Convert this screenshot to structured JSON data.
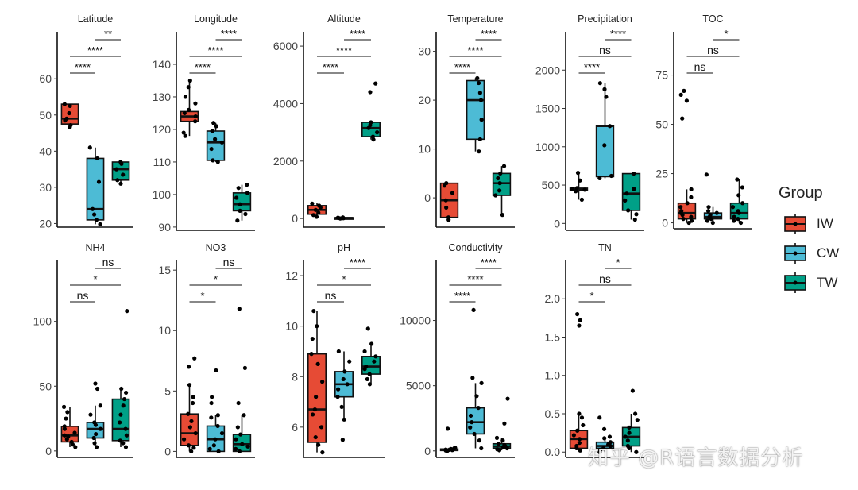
{
  "colors": {
    "IW": "#e64b35",
    "CW": "#4dbbd5",
    "TW": "#00a087"
  },
  "legend": {
    "title": "Group",
    "items": [
      "IW",
      "CW",
      "TW"
    ]
  },
  "watermark": "知乎 @R语言数据分析",
  "chart_data": [
    {
      "type": "box",
      "title": "Latitude",
      "categories": [
        "IW",
        "CW",
        "TW"
      ],
      "ylim": [
        19,
        73
      ],
      "yticks": [
        20,
        30,
        40,
        50,
        60
      ],
      "boxes": [
        {
          "group": "IW",
          "min": 46.5,
          "q1": 47.5,
          "median": 49.0,
          "q3": 53.0,
          "max": 53.0,
          "points": [
            46.6,
            47.2,
            48.5,
            49.0,
            50.5,
            52.5,
            53.0
          ]
        },
        {
          "group": "CW",
          "min": 19.8,
          "q1": 21.0,
          "median": 24.0,
          "q3": 38.0,
          "max": 41.0,
          "points": [
            19.8,
            21.0,
            22.5,
            24.0,
            31.5,
            38.0,
            41.0
          ]
        },
        {
          "group": "TW",
          "min": 31.0,
          "q1": 32.0,
          "median": 35.0,
          "q3": 37.0,
          "max": 37.0,
          "points": [
            31.0,
            32.0,
            33.5,
            35.0,
            36.5,
            37.0
          ]
        }
      ],
      "significance": [
        {
          "pair": [
            "CW",
            "TW"
          ],
          "label": "**"
        },
        {
          "pair": [
            "IW",
            "TW"
          ],
          "label": "****"
        },
        {
          "pair": [
            "IW",
            "CW"
          ],
          "label": "****"
        }
      ]
    },
    {
      "type": "box",
      "title": "Longitude",
      "categories": [
        "IW",
        "CW",
        "TW"
      ],
      "ylim": [
        89,
        150
      ],
      "yticks": [
        90,
        100,
        110,
        120,
        130,
        140
      ],
      "boxes": [
        {
          "group": "IW",
          "min": 118.0,
          "q1": 122.5,
          "median": 124.0,
          "q3": 125.5,
          "max": 135.0,
          "points": [
            118.0,
            119.0,
            122.5,
            124.0,
            125.0,
            126.0,
            128.0,
            130.0,
            133.0,
            135.0
          ]
        },
        {
          "group": "CW",
          "min": 110.0,
          "q1": 110.5,
          "median": 116.0,
          "q3": 119.5,
          "max": 122.0,
          "points": [
            110.0,
            110.5,
            114.0,
            116.0,
            117.0,
            119.5,
            121.0,
            122.0
          ]
        },
        {
          "group": "TW",
          "min": 92.0,
          "q1": 95.0,
          "median": 97.0,
          "q3": 100.5,
          "max": 103.0,
          "points": [
            92.0,
            94.0,
            95.0,
            97.0,
            99.0,
            100.5,
            102.0,
            103.0
          ]
        }
      ],
      "significance": [
        {
          "pair": [
            "CW",
            "TW"
          ],
          "label": "****"
        },
        {
          "pair": [
            "IW",
            "TW"
          ],
          "label": "****"
        },
        {
          "pair": [
            "IW",
            "CW"
          ],
          "label": "****"
        }
      ]
    },
    {
      "type": "box",
      "title": "Altitude",
      "categories": [
        "IW",
        "CW",
        "TW"
      ],
      "ylim": [
        -300,
        6500
      ],
      "yticks": [
        0,
        2000,
        4000,
        6000
      ],
      "boxes": [
        {
          "group": "IW",
          "min": 50,
          "q1": 150,
          "median": 300,
          "q3": 450,
          "max": 550,
          "points": [
            60,
            120,
            200,
            300,
            380,
            450,
            520
          ]
        },
        {
          "group": "CW",
          "min": 0,
          "q1": 10,
          "median": 20,
          "q3": 30,
          "max": 50,
          "points": [
            0,
            10,
            20,
            30,
            40
          ]
        },
        {
          "group": "TW",
          "min": 2750,
          "q1": 2850,
          "median": 3150,
          "q3": 3350,
          "max": 3400,
          "points": [
            2750,
            2850,
            3000,
            3150,
            3250,
            3350,
            4400,
            4700
          ]
        }
      ],
      "significance": [
        {
          "pair": [
            "CW",
            "TW"
          ],
          "label": "****"
        },
        {
          "pair": [
            "IW",
            "TW"
          ],
          "label": "****"
        },
        {
          "pair": [
            "IW",
            "CW"
          ],
          "label": "****"
        }
      ]
    },
    {
      "type": "box",
      "title": "Temperature",
      "categories": [
        "IW",
        "CW",
        "TW"
      ],
      "ylim": [
        -6,
        34
      ],
      "yticks": [
        0,
        10,
        20,
        30
      ],
      "boxes": [
        {
          "group": "IW",
          "min": -4.5,
          "q1": -4.0,
          "median": -0.5,
          "q3": 3.0,
          "max": 3.0,
          "points": [
            -4.5,
            -4.0,
            -2.0,
            -0.5,
            1.0,
            2.5,
            3.0
          ]
        },
        {
          "group": "CW",
          "min": 9.5,
          "q1": 12.0,
          "median": 20.0,
          "q3": 24.0,
          "max": 24.5,
          "points": [
            9.5,
            12.0,
            16.0,
            20.0,
            21.5,
            23.5,
            24.5
          ]
        },
        {
          "group": "TW",
          "min": -3.5,
          "q1": 0.5,
          "median": 3.0,
          "q3": 5.0,
          "max": 6.5,
          "points": [
            -3.5,
            0.5,
            1.5,
            3.0,
            4.0,
            5.0,
            6.5
          ]
        }
      ],
      "significance": [
        {
          "pair": [
            "CW",
            "TW"
          ],
          "label": "****"
        },
        {
          "pair": [
            "IW",
            "TW"
          ],
          "label": "****"
        },
        {
          "pair": [
            "IW",
            "CW"
          ],
          "label": "****"
        }
      ]
    },
    {
      "type": "box",
      "title": "Precipitation",
      "categories": [
        "IW",
        "CW",
        "TW"
      ],
      "ylim": [
        -90,
        2500
      ],
      "yticks": [
        0,
        500,
        1000,
        1500,
        2000
      ],
      "boxes": [
        {
          "group": "IW",
          "min": 310,
          "q1": 430,
          "median": 450,
          "q3": 460,
          "max": 660,
          "points": [
            310,
            420,
            440,
            450,
            460,
            560,
            660
          ]
        },
        {
          "group": "CW",
          "min": 590,
          "q1": 610,
          "median": 1270,
          "q3": 1270,
          "max": 1830,
          "points": [
            590,
            620,
            1020,
            1270,
            1650,
            1750,
            1830
          ]
        },
        {
          "group": "TW",
          "min": 50,
          "q1": 170,
          "median": 390,
          "q3": 650,
          "max": 650,
          "points": [
            50,
            120,
            170,
            300,
            390,
            450,
            650
          ]
        }
      ],
      "significance": [
        {
          "pair": [
            "CW",
            "TW"
          ],
          "label": "****"
        },
        {
          "pair": [
            "IW",
            "TW"
          ],
          "label": "ns"
        },
        {
          "pair": [
            "IW",
            "CW"
          ],
          "label": "****"
        }
      ]
    },
    {
      "type": "box",
      "title": "TOC",
      "categories": [
        "IW",
        "CW",
        "TW"
      ],
      "ylim": [
        -3,
        97
      ],
      "yticks": [
        0,
        25,
        50,
        75
      ],
      "boxes": [
        {
          "group": "IW",
          "min": 0,
          "q1": 2,
          "median": 5,
          "q3": 10,
          "max": 17,
          "points": [
            0,
            1,
            2,
            3,
            4,
            5,
            6,
            8,
            10,
            13,
            17,
            53,
            62,
            65,
            67
          ]
        },
        {
          "group": "CW",
          "min": 0,
          "q1": 2,
          "median": 3,
          "q3": 5,
          "max": 8,
          "points": [
            0,
            1,
            2,
            3,
            4,
            5,
            6,
            8,
            24.5
          ]
        },
        {
          "group": "TW",
          "min": 0,
          "q1": 2,
          "median": 5,
          "q3": 10,
          "max": 22,
          "points": [
            0,
            1,
            2,
            3,
            5,
            6,
            8,
            10,
            14,
            18,
            22
          ]
        }
      ],
      "significance": [
        {
          "pair": [
            "CW",
            "TW"
          ],
          "label": "*"
        },
        {
          "pair": [
            "IW",
            "TW"
          ],
          "label": "ns"
        },
        {
          "pair": [
            "IW",
            "CW"
          ],
          "label": "ns"
        }
      ]
    },
    {
      "type": "box",
      "title": "NH4",
      "categories": [
        "IW",
        "CW",
        "TW"
      ],
      "ylim": [
        -5,
        147
      ],
      "yticks": [
        0,
        50,
        100
      ],
      "boxes": [
        {
          "group": "IW",
          "min": 3,
          "q1": 7,
          "median": 12,
          "q3": 19,
          "max": 34,
          "points": [
            3,
            5,
            7,
            9,
            11,
            12,
            14,
            17,
            19,
            25,
            30,
            34
          ]
        },
        {
          "group": "CW",
          "min": 3,
          "q1": 10,
          "median": 17,
          "q3": 22,
          "max": 35,
          "points": [
            3,
            6,
            10,
            13,
            17,
            20,
            22,
            28,
            35,
            48,
            52
          ]
        },
        {
          "group": "TW",
          "min": 3,
          "q1": 8,
          "median": 17,
          "q3": 40,
          "max": 48,
          "points": [
            3,
            6,
            8,
            12,
            17,
            22,
            28,
            35,
            40,
            45,
            48,
            108
          ]
        }
      ],
      "significance": [
        {
          "pair": [
            "CW",
            "TW"
          ],
          "label": "ns"
        },
        {
          "pair": [
            "IW",
            "TW"
          ],
          "label": "*"
        },
        {
          "pair": [
            "IW",
            "CW"
          ],
          "label": "ns"
        }
      ]
    },
    {
      "type": "box",
      "title": "NO3",
      "categories": [
        "IW",
        "CW",
        "TW"
      ],
      "ylim": [
        -0.5,
        15.8
      ],
      "yticks": [
        0,
        5,
        10,
        15
      ],
      "boxes": [
        {
          "group": "IW",
          "min": 0,
          "q1": 0.5,
          "median": 1.5,
          "q3": 3.1,
          "max": 5.5,
          "points": [
            0,
            0.3,
            0.5,
            1.0,
            1.5,
            2.0,
            2.5,
            3.1,
            4.0,
            4.5,
            5.5,
            7.0,
            7.7
          ]
        },
        {
          "group": "CW",
          "min": 0,
          "q1": 0,
          "median": 1.0,
          "q3": 2.1,
          "max": 3.0,
          "points": [
            0,
            0.2,
            0.5,
            1.0,
            1.5,
            2.1,
            2.8,
            3.0,
            4.0,
            4.5,
            6.7
          ]
        },
        {
          "group": "TW",
          "min": 0,
          "q1": 0,
          "median": 0.6,
          "q3": 1.4,
          "max": 3.0,
          "points": [
            0,
            0.2,
            0.4,
            0.6,
            1.0,
            1.4,
            2.0,
            3.0,
            4.0,
            6.9,
            11.8
          ]
        }
      ],
      "significance": [
        {
          "pair": [
            "CW",
            "TW"
          ],
          "label": "ns"
        },
        {
          "pair": [
            "IW",
            "TW"
          ],
          "label": "*"
        },
        {
          "pair": [
            "IW",
            "CW"
          ],
          "label": "*"
        }
      ]
    },
    {
      "type": "box",
      "title": "pH",
      "categories": [
        "IW",
        "CW",
        "TW"
      ],
      "ylim": [
        4.8,
        12.6
      ],
      "yticks": [
        6,
        8,
        10,
        12
      ],
      "boxes": [
        {
          "group": "IW",
          "min": 5.0,
          "q1": 5.4,
          "median": 6.7,
          "q3": 8.9,
          "max": 10.6,
          "points": [
            5.0,
            5.3,
            5.6,
            6.0,
            6.5,
            6.7,
            7.2,
            7.8,
            8.5,
            8.9,
            9.5,
            10.0,
            10.6
          ]
        },
        {
          "group": "CW",
          "min": 6.3,
          "q1": 7.2,
          "median": 7.7,
          "q3": 8.2,
          "max": 9.0,
          "points": [
            5.5,
            6.3,
            6.8,
            7.2,
            7.5,
            7.7,
            7.9,
            8.2,
            8.6,
            9.0
          ]
        },
        {
          "group": "TW",
          "min": 7.7,
          "q1": 8.1,
          "median": 8.4,
          "q3": 8.8,
          "max": 9.3,
          "points": [
            7.7,
            7.9,
            8.1,
            8.3,
            8.4,
            8.6,
            8.8,
            9.0,
            9.3,
            9.9
          ]
        }
      ],
      "significance": [
        {
          "pair": [
            "CW",
            "TW"
          ],
          "label": "****"
        },
        {
          "pair": [
            "IW",
            "TW"
          ],
          "label": "*"
        },
        {
          "pair": [
            "IW",
            "CW"
          ],
          "label": "ns"
        }
      ]
    },
    {
      "type": "box",
      "title": "Conductivity",
      "categories": [
        "IW",
        "CW",
        "TW"
      ],
      "ylim": [
        -500,
        14600
      ],
      "yticks": [
        0,
        5000,
        10000
      ],
      "boxes": [
        {
          "group": "IW",
          "min": 0,
          "q1": 30,
          "median": 80,
          "q3": 150,
          "max": 250,
          "points": [
            0,
            30,
            60,
            80,
            100,
            150,
            200,
            250,
            1700
          ]
        },
        {
          "group": "CW",
          "min": 200,
          "q1": 1300,
          "median": 2200,
          "q3": 3300,
          "max": 5200,
          "points": [
            200,
            800,
            1300,
            1800,
            2200,
            2700,
            3300,
            4200,
            5200,
            5600,
            10800
          ]
        },
        {
          "group": "TW",
          "min": 50,
          "q1": 200,
          "median": 350,
          "q3": 550,
          "max": 1000,
          "points": [
            50,
            120,
            200,
            300,
            350,
            450,
            550,
            800,
            1000,
            2100,
            4000
          ]
        }
      ],
      "significance": [
        {
          "pair": [
            "CW",
            "TW"
          ],
          "label": "****"
        },
        {
          "pair": [
            "IW",
            "TW"
          ],
          "label": "****"
        },
        {
          "pair": [
            "IW",
            "CW"
          ],
          "label": "****"
        }
      ]
    },
    {
      "type": "box",
      "title": "TN",
      "categories": [
        "IW",
        "CW",
        "TW"
      ],
      "ylim": [
        -0.07,
        2.5
      ],
      "yticks": [
        0.0,
        0.5,
        1.0,
        1.5,
        2.0
      ],
      "boxes": [
        {
          "group": "IW",
          "min": 0.02,
          "q1": 0.05,
          "median": 0.17,
          "q3": 0.28,
          "max": 0.5,
          "points": [
            0.02,
            0.05,
            0.08,
            0.12,
            0.17,
            0.22,
            0.28,
            0.35,
            0.45,
            0.5,
            1.65,
            1.72,
            1.8
          ]
        },
        {
          "group": "CW",
          "min": 0.0,
          "q1": 0.05,
          "median": 0.08,
          "q3": 0.13,
          "max": 0.2,
          "points": [
            0.0,
            0.03,
            0.05,
            0.08,
            0.1,
            0.13,
            0.18,
            0.2,
            0.3,
            0.45
          ]
        },
        {
          "group": "TW",
          "min": 0.0,
          "q1": 0.08,
          "median": 0.2,
          "q3": 0.32,
          "max": 0.5,
          "points": [
            0.0,
            0.05,
            0.08,
            0.15,
            0.2,
            0.25,
            0.32,
            0.42,
            0.5,
            0.8
          ]
        }
      ],
      "significance": [
        {
          "pair": [
            "CW",
            "TW"
          ],
          "label": "*"
        },
        {
          "pair": [
            "IW",
            "TW"
          ],
          "label": "ns"
        },
        {
          "pair": [
            "IW",
            "CW"
          ],
          "label": "*"
        }
      ]
    }
  ]
}
